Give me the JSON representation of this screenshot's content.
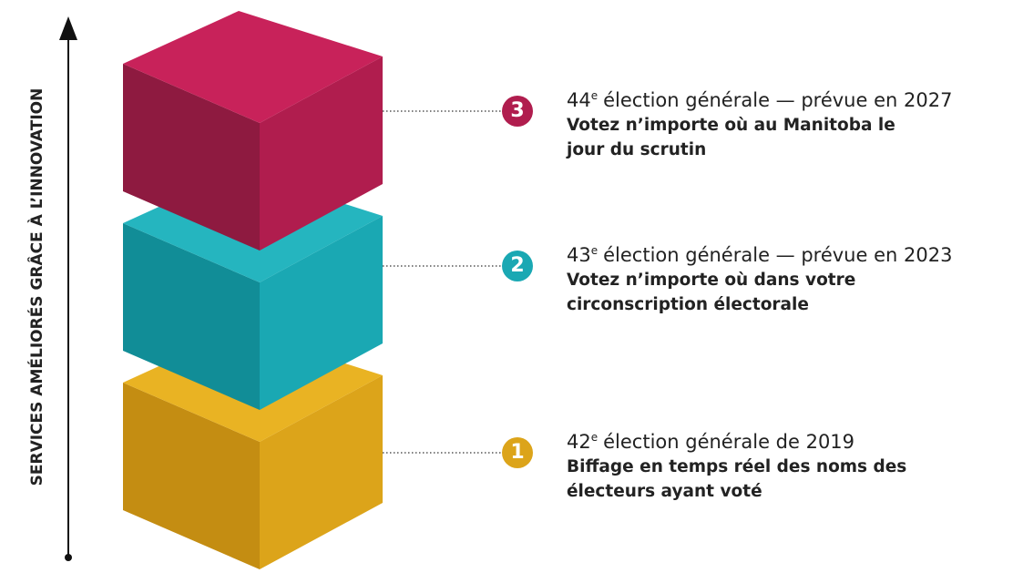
{
  "axis_label": "SERVICES AMÉLIORÉS GRÂCE À L’INNOVATION",
  "steps": [
    {
      "number": "3",
      "ordinal": "44",
      "suffix": "e",
      "title": "élection générale — prévue en 2027",
      "description": "Votez n’importe où au Manitoba le jour du scrutin"
    },
    {
      "number": "2",
      "ordinal": "43",
      "suffix": "e",
      "title": "élection générale — prévue en 2023",
      "description": "Votez n’importe où dans votre circonscription électorale"
    },
    {
      "number": "1",
      "ordinal": "42",
      "suffix": "e",
      "title": "élection générale de 2019",
      "description": "Biffage en temps réel des noms des électeurs ayant voté"
    }
  ]
}
